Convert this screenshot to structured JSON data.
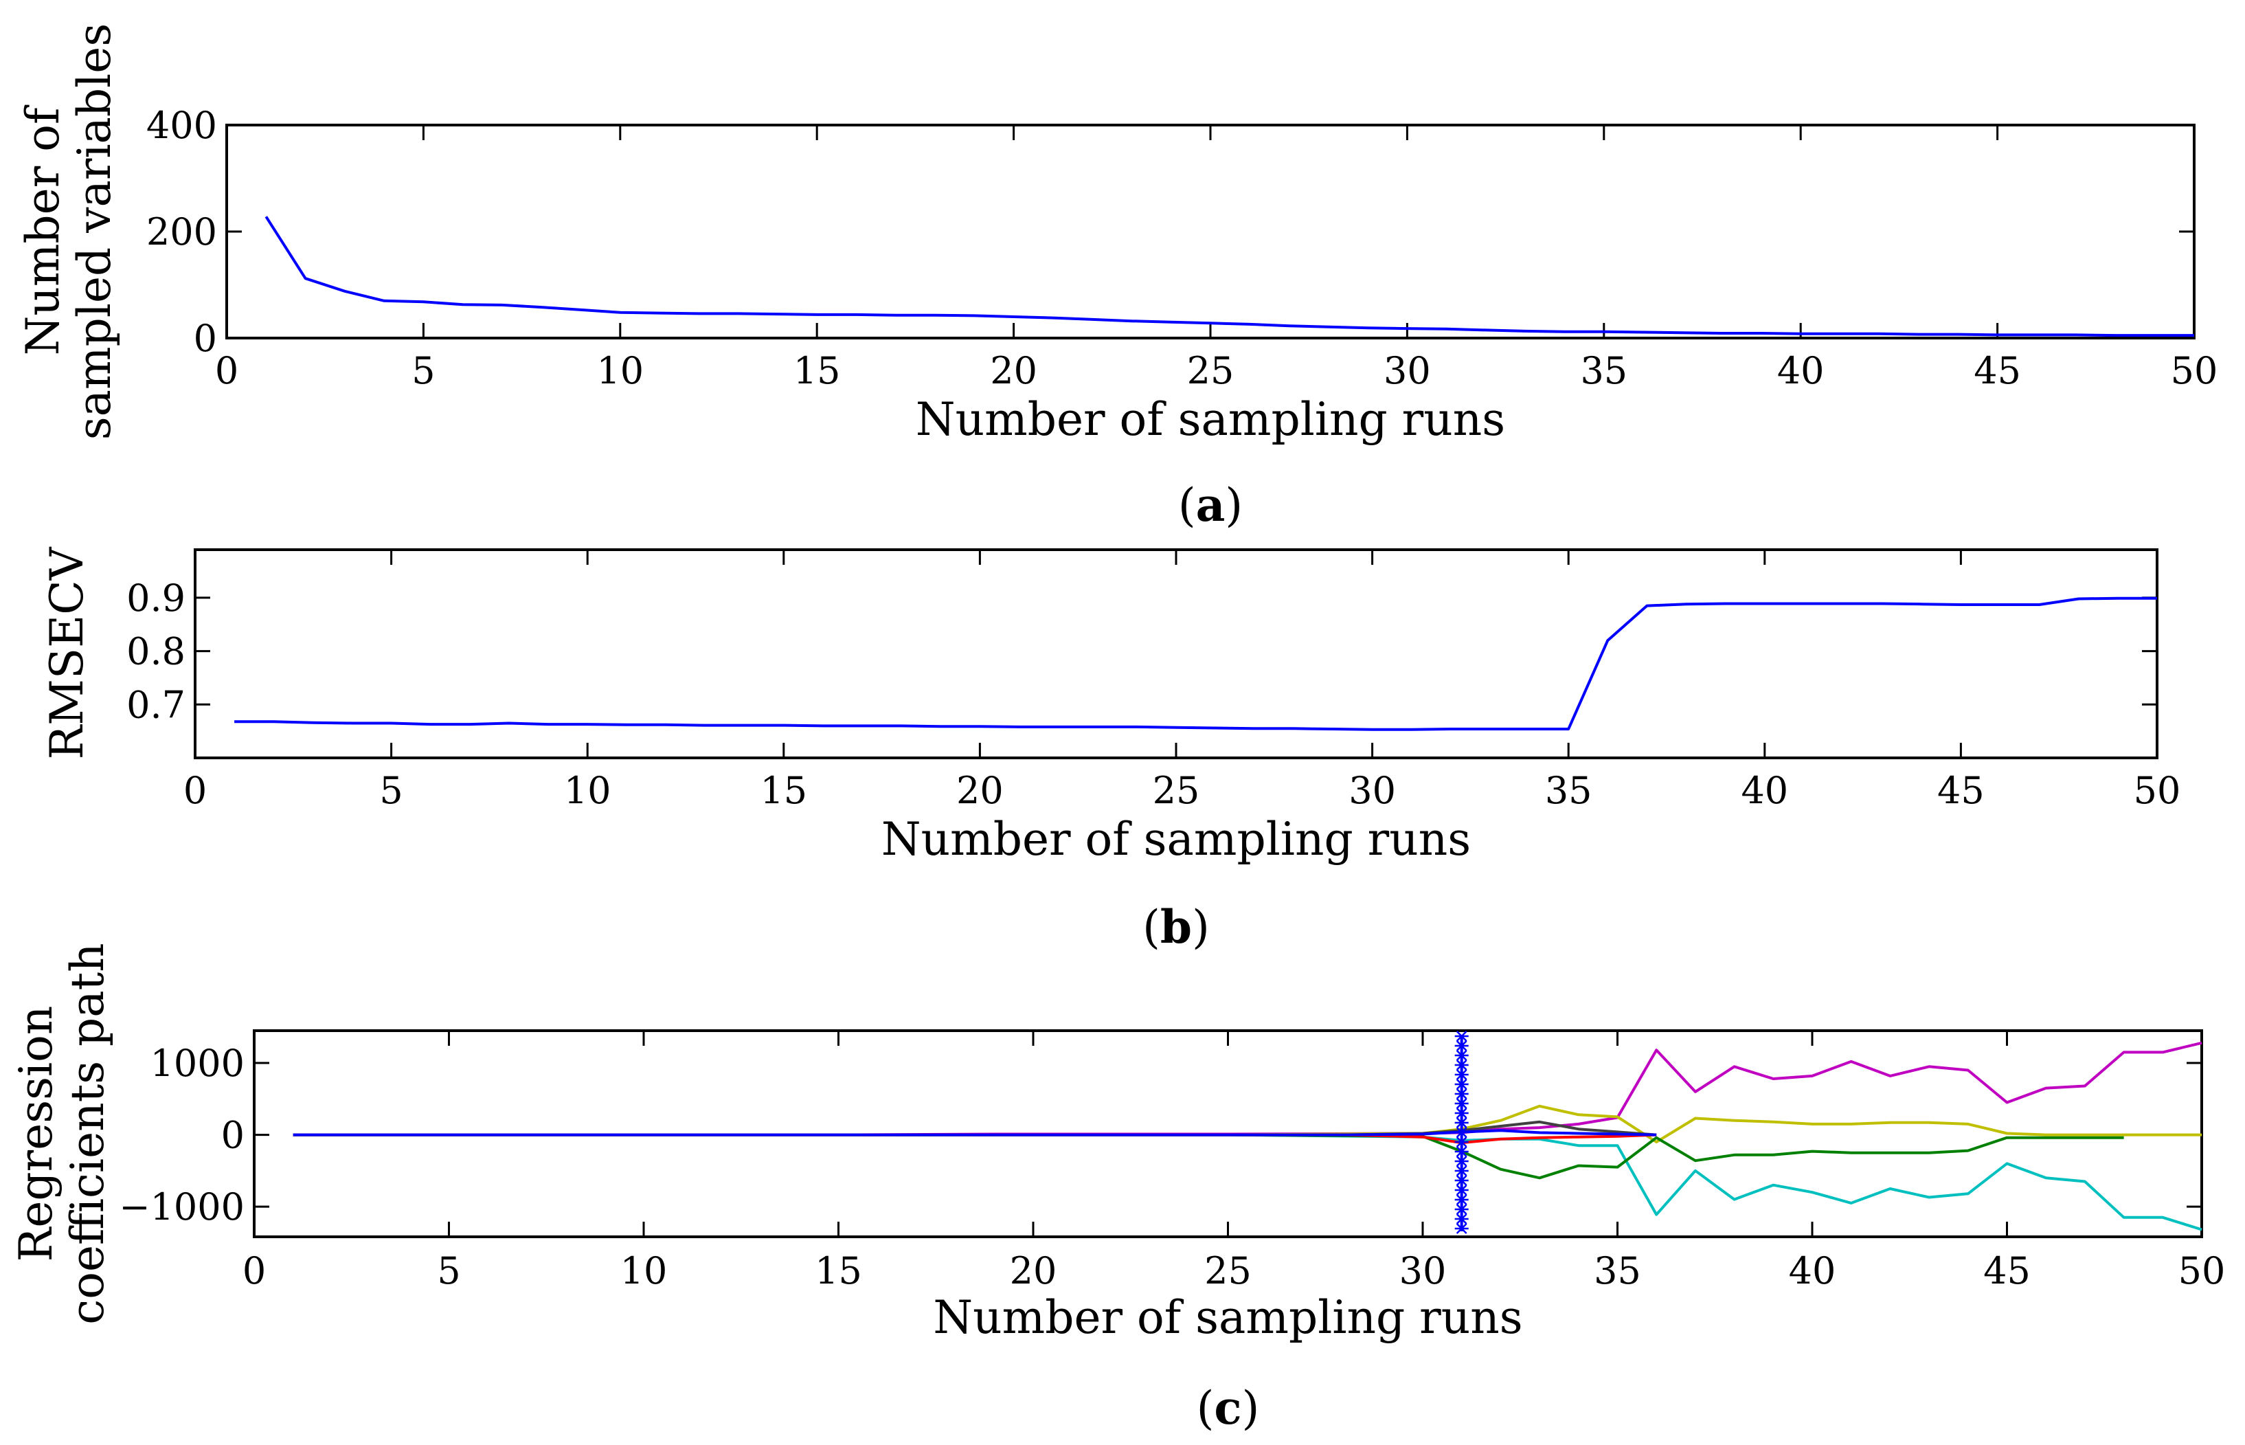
{
  "chart_data": [
    {
      "type": "line",
      "panel": "a",
      "caption_open": "(",
      "caption_letter": "a",
      "caption_close": ")",
      "xlabel": "Number of sampling runs",
      "ylabel_lines": [
        "Number of",
        "sampled variables"
      ],
      "xlim": [
        0,
        50
      ],
      "ylim": [
        0,
        400
      ],
      "xticks": [
        0,
        5,
        10,
        15,
        20,
        25,
        30,
        35,
        40,
        45,
        50
      ],
      "yticks": [
        0,
        200,
        400
      ],
      "series": [
        {
          "name": "sampled variables",
          "color": "#0000ff",
          "x": [
            1,
            2,
            3,
            4,
            5,
            6,
            7,
            8,
            9,
            10,
            11,
            12,
            13,
            14,
            15,
            16,
            17,
            18,
            19,
            20,
            21,
            22,
            23,
            24,
            25,
            26,
            27,
            28,
            29,
            30,
            31,
            32,
            33,
            34,
            35,
            36,
            37,
            38,
            39,
            40,
            41,
            42,
            43,
            44,
            45,
            46,
            47,
            48,
            49,
            50
          ],
          "values": [
            228,
            112,
            88,
            70,
            68,
            63,
            62,
            58,
            53,
            48,
            47,
            46,
            46,
            45,
            44,
            44,
            43,
            43,
            42,
            40,
            38,
            35,
            32,
            30,
            28,
            26,
            23,
            21,
            19,
            18,
            17,
            15,
            13,
            12,
            12,
            11,
            10,
            9,
            9,
            8,
            8,
            8,
            7,
            7,
            6,
            6,
            6,
            5,
            5,
            5
          ]
        }
      ]
    },
    {
      "type": "line",
      "panel": "b",
      "caption_open": "(",
      "caption_letter": "b",
      "caption_close": ")",
      "xlabel": "Number of sampling runs",
      "ylabel": "RMSECV",
      "xlim": [
        0,
        50
      ],
      "ylim": [
        0.6,
        0.99
      ],
      "xticks": [
        0,
        5,
        10,
        15,
        20,
        25,
        30,
        35,
        40,
        45,
        50
      ],
      "yticks": [
        0.7,
        0.8,
        0.9
      ],
      "ytick_labels": [
        "0.7",
        "0.8",
        "0.9"
      ],
      "series": [
        {
          "name": "RMSECV",
          "color": "#0000ff",
          "x": [
            1,
            2,
            3,
            4,
            5,
            6,
            7,
            8,
            9,
            10,
            11,
            12,
            13,
            14,
            15,
            16,
            17,
            18,
            19,
            20,
            21,
            22,
            23,
            24,
            25,
            26,
            27,
            28,
            29,
            30,
            31,
            32,
            33,
            34,
            35,
            36,
            37,
            38,
            39,
            40,
            41,
            42,
            43,
            44,
            45,
            46,
            47,
            48,
            49,
            50
          ],
          "values": [
            0.668,
            0.668,
            0.666,
            0.665,
            0.665,
            0.663,
            0.663,
            0.665,
            0.663,
            0.663,
            0.662,
            0.662,
            0.661,
            0.661,
            0.661,
            0.66,
            0.66,
            0.66,
            0.659,
            0.659,
            0.658,
            0.658,
            0.658,
            0.658,
            0.657,
            0.656,
            0.655,
            0.655,
            0.654,
            0.653,
            0.653,
            0.654,
            0.654,
            0.654,
            0.654,
            0.82,
            0.885,
            0.888,
            0.889,
            0.889,
            0.889,
            0.889,
            0.889,
            0.888,
            0.887,
            0.887,
            0.887,
            0.898,
            0.899,
            0.899
          ]
        }
      ]
    },
    {
      "type": "line",
      "panel": "c",
      "caption_open": "(",
      "caption_letter": "c",
      "caption_close": ")",
      "xlabel": "Number of sampling runs",
      "ylabel_lines": [
        "Regression",
        "coefficients path"
      ],
      "xlim": [
        0,
        50
      ],
      "ylim": [
        -1420,
        1450
      ],
      "xticks": [
        0,
        5,
        10,
        15,
        20,
        25,
        30,
        35,
        40,
        45,
        50
      ],
      "yticks": [
        -1000,
        0,
        1000
      ],
      "ytick_labels": [
        "−1000",
        "0",
        "1000"
      ],
      "marker_run": 31,
      "marker_color": "#0000ff",
      "series": [
        {
          "name": "magenta",
          "color": "#c000c0",
          "x": [
            1,
            5,
            10,
            15,
            19,
            25,
            30,
            31,
            32,
            33,
            34,
            35,
            36,
            37,
            38,
            39,
            40,
            41,
            42,
            43,
            44,
            45,
            46,
            47,
            48,
            49,
            50
          ],
          "values": [
            0,
            0,
            0,
            0,
            10,
            10,
            20,
            30,
            80,
            100,
            150,
            240,
            1180,
            600,
            950,
            780,
            820,
            1020,
            820,
            950,
            900,
            450,
            650,
            680,
            1150,
            1150,
            1280
          ]
        },
        {
          "name": "cyan",
          "color": "#00bfbf",
          "x": [
            1,
            5,
            10,
            15,
            20,
            25,
            30,
            31,
            32,
            33,
            34,
            35,
            36,
            37,
            38,
            39,
            40,
            41,
            42,
            43,
            44,
            45,
            46,
            47,
            48,
            49,
            50
          ],
          "values": [
            0,
            0,
            0,
            0,
            0,
            0,
            -30,
            -80,
            -60,
            -60,
            -150,
            -150,
            -1110,
            -500,
            -900,
            -700,
            -800,
            -950,
            -750,
            -870,
            -820,
            -400,
            -600,
            -650,
            -1150,
            -1150,
            -1320
          ]
        },
        {
          "name": "olive",
          "color": "#bfbf00",
          "x": [
            1,
            5,
            10,
            15,
            20,
            25,
            30,
            31,
            32,
            33,
            34,
            35,
            36,
            37,
            38,
            39,
            40,
            41,
            42,
            43,
            44,
            45,
            46,
            47,
            48,
            49,
            50
          ],
          "values": [
            0,
            0,
            0,
            0,
            0,
            0,
            20,
            80,
            200,
            400,
            280,
            250,
            -100,
            230,
            200,
            180,
            150,
            150,
            170,
            170,
            150,
            20,
            0,
            0,
            0,
            0,
            0
          ]
        },
        {
          "name": "green",
          "color": "#008000",
          "x": [
            1,
            5,
            10,
            15,
            20,
            25,
            30,
            31,
            32,
            33,
            34,
            35,
            36,
            37,
            38,
            39,
            40,
            41,
            42,
            43,
            44,
            45,
            46,
            47,
            48
          ],
          "values": [
            0,
            0,
            0,
            0,
            0,
            0,
            -20,
            -230,
            -480,
            -600,
            -430,
            -450,
            -40,
            -360,
            -280,
            -280,
            -230,
            -250,
            -250,
            -250,
            -220,
            -40,
            -40,
            -40,
            -40
          ]
        },
        {
          "name": "dark",
          "color": "#404040",
          "x": [
            1,
            10,
            20,
            28,
            30,
            31,
            32,
            33,
            34,
            35,
            36
          ],
          "values": [
            0,
            0,
            0,
            0,
            20,
            60,
            120,
            180,
            80,
            40,
            0
          ]
        },
        {
          "name": "red",
          "color": "#ff0000",
          "x": [
            1,
            10,
            20,
            28,
            30,
            31,
            32,
            33,
            34,
            35,
            36
          ],
          "values": [
            0,
            0,
            0,
            0,
            -30,
            -110,
            -60,
            -40,
            -30,
            -20,
            0
          ]
        },
        {
          "name": "blue",
          "color": "#0000ff",
          "x": [
            1,
            10,
            20,
            28,
            30,
            31,
            32,
            33,
            34,
            35,
            36
          ],
          "values": [
            0,
            0,
            0,
            0,
            10,
            40,
            60,
            30,
            20,
            10,
            0
          ]
        }
      ]
    }
  ]
}
